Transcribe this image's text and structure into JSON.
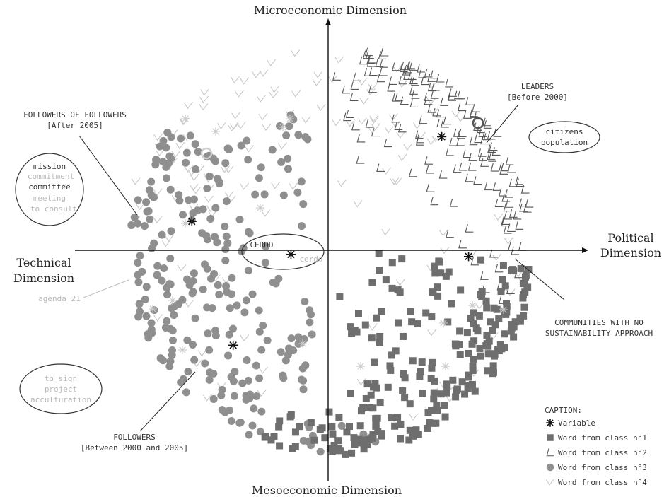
{
  "chart_data": {
    "type": "scatter",
    "title": "",
    "axes": {
      "top": "Microeconomic Dimension",
      "bottom": "Mesoeconomic Dimension",
      "left": [
        "Technical",
        "Dimension"
      ],
      "right": [
        "Political",
        "Dimension"
      ]
    },
    "variables": [
      {
        "label": [
          "LEADERS",
          "[Before 2000]"
        ],
        "x": 0.55,
        "y": 0.55
      },
      {
        "label": [
          "FOLLOWERS OF FOLLOWERS",
          "[After 2005]"
        ],
        "x": -0.66,
        "y": 0.14
      },
      {
        "label": [
          "CERDD"
        ],
        "x": -0.18,
        "y": -0.02
      },
      {
        "label": [
          "COMMUNITIES WITH NO",
          "SUSTAINABILITY APPROACH"
        ],
        "x": 0.68,
        "y": -0.03
      },
      {
        "label": [
          "FOLLOWERS",
          "[Between 2000 and 2005]"
        ],
        "x": -0.46,
        "y": -0.46
      }
    ],
    "words": [
      {
        "text": [
          "citizens",
          "population"
        ],
        "cls": 2
      },
      {
        "text": [
          "mission",
          "commitment",
          "committee",
          "meeting",
          "to consult"
        ],
        "cls": 3
      },
      {
        "text": [
          "agenda 21"
        ],
        "cls": 3
      },
      {
        "text": [
          "cerdd"
        ],
        "cls": 3
      },
      {
        "text": [
          "to sign",
          "project",
          "acculturation"
        ],
        "cls": 3
      }
    ],
    "legend": {
      "title": "CAPTION:",
      "items": [
        {
          "marker": "star",
          "label": "Variable"
        },
        {
          "marker": "square",
          "label": "Word from class n°1"
        },
        {
          "marker": "check",
          "label": "Word from class n°2"
        },
        {
          "marker": "circle",
          "label": "Word from class n°3"
        },
        {
          "marker": "tick",
          "label": "Word from class n°4"
        }
      ]
    },
    "colors": {
      "class1": "#6e6e6e",
      "class2": "#555555",
      "class3": "#8f8f8f",
      "class4": "#c8c8c8",
      "variable": "#111111"
    }
  }
}
